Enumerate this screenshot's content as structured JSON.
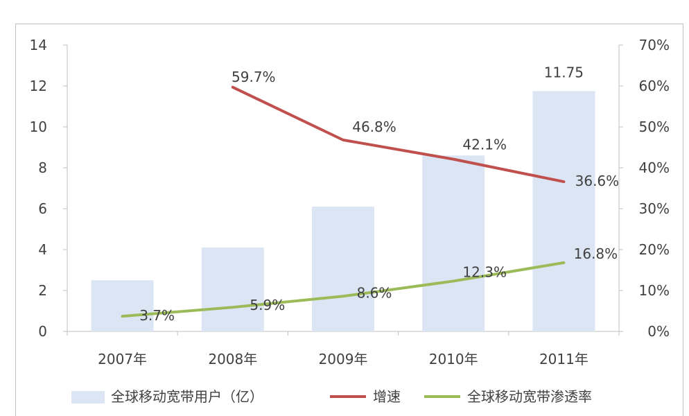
{
  "chart_data": {
    "type": "bar+line",
    "categories": [
      "2007年",
      "2008年",
      "2009年",
      "2010年",
      "2011年"
    ],
    "y_left": {
      "min": 0,
      "max": 14,
      "ticks": [
        "0",
        "2",
        "4",
        "6",
        "8",
        "10",
        "12",
        "14"
      ]
    },
    "y_right": {
      "min": 0,
      "max": 70,
      "ticks": [
        "0%",
        "10%",
        "20%",
        "30%",
        "40%",
        "50%",
        "60%",
        "70%"
      ]
    },
    "series": [
      {
        "name": "全球移动宽带用户（亿）",
        "type": "bar",
        "axis": "left",
        "values": [
          2.5,
          4.1,
          6.1,
          8.6,
          11.75
        ],
        "labels": [
          "",
          "",
          "",
          "",
          "11.75"
        ],
        "color": "#dbe5f4"
      },
      {
        "name": "增速",
        "type": "line",
        "axis": "right",
        "values": [
          null,
          59.7,
          46.8,
          42.1,
          36.6
        ],
        "labels": [
          "",
          "59.7%",
          "46.8%",
          "42.1%",
          "36.6%"
        ],
        "color": "#c0504d"
      },
      {
        "name": "全球移动宽带渗透率",
        "type": "line",
        "axis": "right",
        "values": [
          3.7,
          5.9,
          8.6,
          12.3,
          16.8
        ],
        "labels": [
          "3.7%",
          "5.9%",
          "8.6%",
          "12.3%",
          "16.8%"
        ],
        "color": "#9bbb59"
      }
    ],
    "legend_position": "bottom",
    "grid": false
  }
}
